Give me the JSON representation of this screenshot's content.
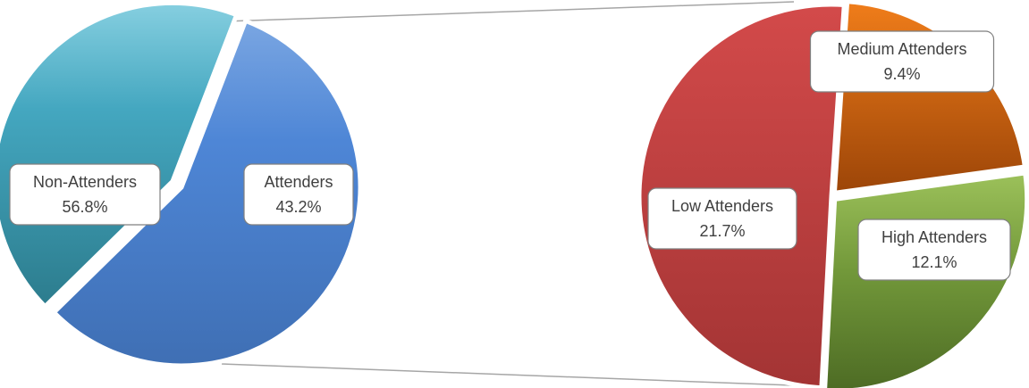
{
  "chart_data": [
    {
      "type": "pie",
      "slices": [
        {
          "label": "Non-Attenders",
          "value": 56.8,
          "display": "56.8%",
          "color": "#4a7fcc"
        },
        {
          "label": "Attenders",
          "value": 43.2,
          "display": "43.2%",
          "color": "#3a9fb2"
        }
      ]
    },
    {
      "type": "pie",
      "slices": [
        {
          "label": "Medium Attenders",
          "value": 9.4,
          "display": "9.4%",
          "color": "#d1640f"
        },
        {
          "label": "High Attenders",
          "value": 12.1,
          "display": "12.1%",
          "color": "#6f9638"
        },
        {
          "label": "Low Attenders",
          "value": 21.7,
          "display": "21.7%",
          "color": "#bf3c3c"
        }
      ]
    }
  ]
}
